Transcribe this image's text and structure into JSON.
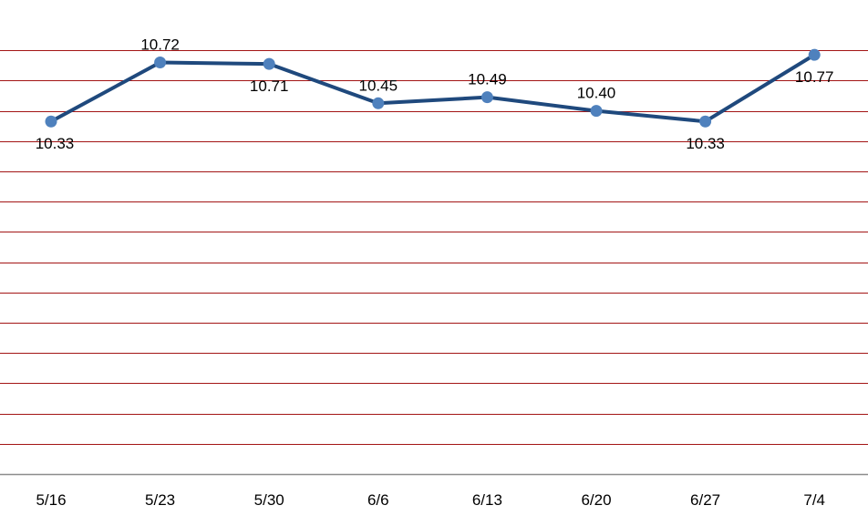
{
  "chart_data": {
    "type": "line",
    "categories": [
      "5/16",
      "5/23",
      "5/30",
      "6/6",
      "6/13",
      "6/20",
      "6/27",
      "7/4"
    ],
    "series": [
      {
        "values": [
          10.33,
          10.72,
          10.71,
          10.45,
          10.49,
          10.4,
          10.33,
          10.77
        ],
        "labels": [
          "10.33",
          "10.72",
          "10.71",
          "10.45",
          "10.49",
          "10.40",
          "10.33",
          "10.77"
        ],
        "label_positions": [
          "below",
          "above",
          "below",
          "above",
          "above",
          "above",
          "below",
          "below"
        ]
      }
    ],
    "ylim": [
      8,
      11
    ],
    "y_grid_step": 0.2,
    "grid": true,
    "colors": {
      "line": "#1f497d",
      "marker": "#4f81bd",
      "grid": "#a31515",
      "axis": "#8c8c8c"
    }
  }
}
